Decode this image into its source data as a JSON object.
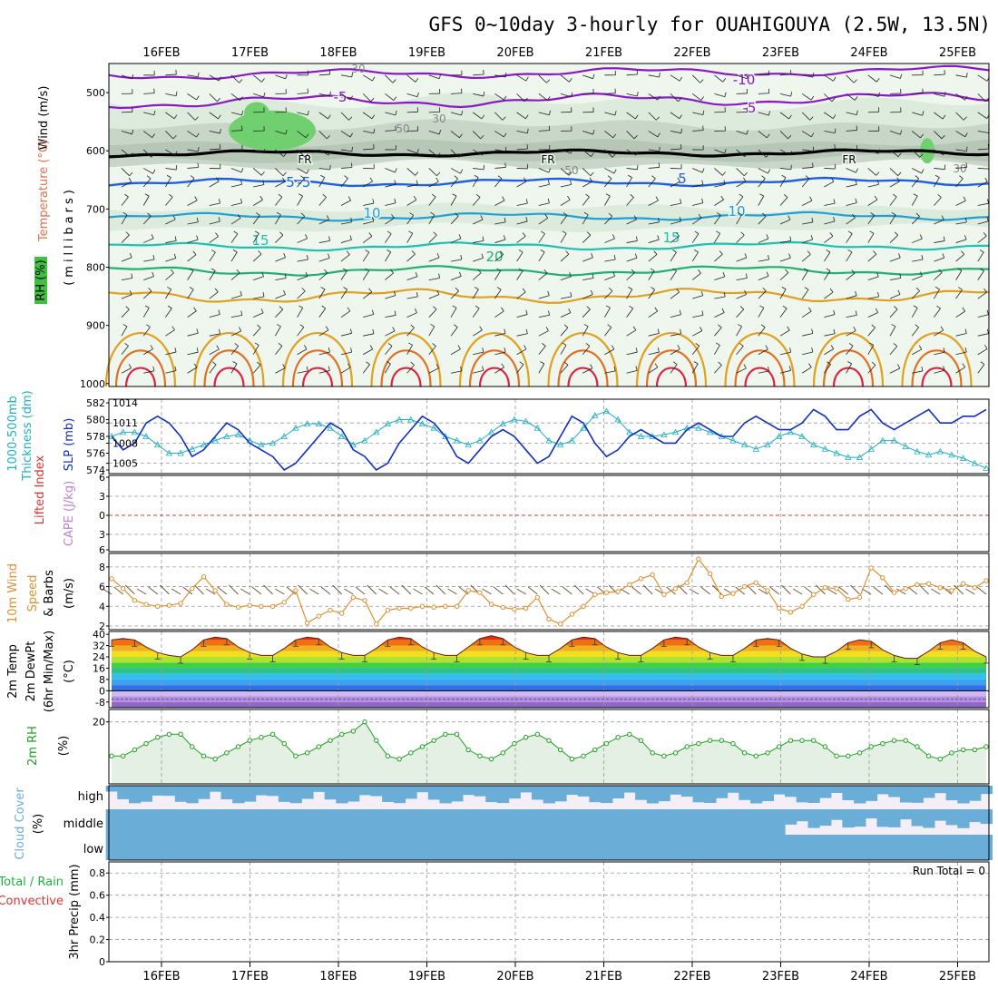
{
  "title": "GFS 0~10day 3-hourly for OUAHIGOUYA (2.5W, 13.5N)",
  "colors": {
    "temp_neg": "#8a18c8",
    "temp_freeze": "#000000",
    "temp_cold": "#2060e0",
    "temp_10": "#20a0d8",
    "temp_15": "#20c0b0",
    "temp_20": "#20b070",
    "temp_warm": "#e0a020",
    "temp_hot": "#e07020",
    "temp_hottest": "#e02040",
    "slp": "#1030c0",
    "thickness": "#20b0c0",
    "lifted_index": "#e03030",
    "cape": "#c080d0",
    "wind": "#e09030",
    "rh": "#20a020",
    "cloud": "#6aaed8",
    "precip_total": "#20b040",
    "precip_conv": "#e03030"
  },
  "axes": {
    "date_labels": [
      "16FEB",
      "17FEB",
      "18FEB",
      "19FEB",
      "20FEB",
      "21FEB",
      "22FEB",
      "23FEB",
      "24FEB",
      "25FEB"
    ]
  },
  "panels": {
    "upper": {
      "ylabel_wind": "Wind (m/s)",
      "ylabel_temp": "Temperature (°C)",
      "ylabel_rh": "RH (%)",
      "ylabel_units": "(millibars)",
      "freeze_label": "FR",
      "yticks": [
        "500",
        "600",
        "700",
        "800",
        "900",
        "1000"
      ],
      "contour_labels": [
        "-10",
        "-5",
        "-5",
        "-5",
        "5",
        "10",
        "10",
        "15",
        "15",
        "20",
        "5"
      ],
      "rh_labels": [
        "30",
        "30",
        "50",
        "50",
        "30"
      ]
    },
    "slp": {
      "ylabel_thick": "Thickness (dm)",
      "ylabel_thick_top": "1000-500mb",
      "ylabel_slp": "SLP (mb)",
      "yticks_left": [
        "582",
        "580",
        "578",
        "576",
        "574"
      ],
      "yticks_right": [
        "1014",
        "1011",
        "1008",
        "1005"
      ]
    },
    "li": {
      "ylabel_li": "Lifted Index",
      "ylabel_cape": "CAPE (J/kg)",
      "yticks": [
        "6",
        "3",
        "0",
        "3",
        "6"
      ]
    },
    "wind": {
      "ylabel_a": "10m Wind",
      "ylabel_b": "Speed",
      "ylabel_c": "& Barbs",
      "ylabel_units": "(m/s)",
      "yticks": [
        "8",
        "6",
        "4",
        "2"
      ]
    },
    "temp": {
      "ylabel_a": "2m Temp",
      "ylabel_b": "2m DewPt",
      "ylabel_c": "(6hr Min/Max)",
      "ylabel_units": "(°C)",
      "yticks": [
        "40",
        "32",
        "24",
        "16",
        "8",
        "0",
        "-8"
      ]
    },
    "rh": {
      "ylabel": "2m RH",
      "ylabel_units": "(%)",
      "yticks": [
        "20"
      ]
    },
    "cloud": {
      "ylabel": "Cloud Cover",
      "ylabel_units": "(%)",
      "levels": [
        "high",
        "middle",
        "low"
      ]
    },
    "precip": {
      "ylabel_a": "Total / Rain",
      "ylabel_b": "Convective",
      "ylabel_c": "3hr Precip (mm)",
      "run_total": "Run Total = 0",
      "yticks": [
        "0.8",
        "0.6",
        "0.4",
        "0.2",
        "0"
      ]
    }
  },
  "chart_data": [
    {
      "type": "line",
      "title": "SLP (mb) and 1000-500mb Thickness (dm)",
      "x_start": "15FEB 12Z",
      "x_step_hours": 3,
      "series": [
        {
          "name": "SLP (mb)",
          "values": [
            1009,
            1007,
            1008,
            1011,
            1012,
            1011,
            1009,
            1006,
            1007,
            1009,
            1011,
            1010,
            1008,
            1007,
            1006,
            1004,
            1005,
            1007,
            1009,
            1011,
            1010,
            1007,
            1006,
            1004,
            1005,
            1008,
            1010,
            1012,
            1011,
            1009,
            1006,
            1005,
            1007,
            1009,
            1010,
            1009,
            1007,
            1005,
            1006,
            1009,
            1012,
            1011,
            1008,
            1006,
            1007,
            1009,
            1010,
            1009,
            1008,
            1008,
            1010,
            1011,
            1010,
            1009,
            1009,
            1011,
            1012,
            1011,
            1010,
            1010,
            1011,
            1013,
            1012,
            1010,
            1010,
            1012,
            1013,
            1011,
            1010,
            1011,
            1012,
            1013,
            1011,
            1011,
            1012,
            1012,
            1013
          ]
        },
        {
          "name": "Thickness (dm)",
          "values": [
            578,
            578.5,
            578.5,
            578,
            577,
            576,
            576,
            576.5,
            577,
            577.5,
            578,
            578.2,
            577.5,
            577,
            577.2,
            578,
            579,
            579.5,
            579.5,
            579,
            578,
            577,
            577.5,
            578.5,
            579.5,
            580,
            580,
            579.5,
            579,
            578,
            577.5,
            577,
            577.5,
            578.5,
            579.5,
            580,
            579.8,
            579,
            577.5,
            577,
            577.5,
            579,
            580.5,
            581,
            580,
            578.5,
            578,
            578,
            578.2,
            578.5,
            579,
            579,
            578.5,
            578,
            577.5,
            577,
            576.5,
            577,
            578,
            578.5,
            578,
            577,
            576.5,
            576,
            575.5,
            575.5,
            576.5,
            577.5,
            577.5,
            576.8,
            576.2,
            575.8,
            576.2,
            575.8,
            575.4,
            574.8,
            574.2
          ]
        }
      ],
      "ylim_thickness": [
        574,
        582
      ],
      "ylim_slp": [
        1004,
        1014
      ]
    },
    {
      "type": "line",
      "title": "10m Wind Speed (m/s)",
      "x_start": "15FEB 12Z",
      "x_step_hours": 3,
      "series": [
        {
          "name": "10m Wind Speed",
          "values": [
            6.8,
            5.8,
            4.6,
            4.2,
            4.0,
            4.1,
            4.3,
            5.8,
            7.0,
            5.6,
            4.2,
            3.9,
            4.1,
            4.0,
            4.0,
            4.4,
            5.6,
            2.3,
            3.0,
            3.6,
            3.3,
            4.9,
            4.6,
            2.2,
            3.6,
            3.8,
            3.8,
            4.0,
            3.9,
            4.0,
            4.0,
            5.6,
            5.4,
            4.2,
            3.9,
            3.7,
            3.8,
            4.9,
            2.7,
            2.2,
            3.2,
            4.0,
            5.2,
            5.4,
            5.5,
            6.2,
            6.8,
            7.2,
            5.2,
            5.8,
            6.4,
            8.8,
            7.3,
            5.0,
            5.3,
            6.0,
            6.4,
            5.6,
            3.8,
            3.4,
            4.0,
            5.2,
            5.9,
            5.8,
            4.7,
            4.9,
            7.9,
            6.9,
            5.4,
            5.8,
            6.2,
            6.3,
            5.9,
            5.6,
            6.3,
            5.9,
            6.6
          ]
        }
      ],
      "ylim": [
        2,
        9
      ]
    },
    {
      "type": "area",
      "title": "2m Temp (°C)",
      "x_start": "15FEB 12Z",
      "x_step_hours": 3,
      "series": [
        {
          "name": "2m Temp (6hr Min/Max)",
          "values": [
            36,
            37,
            36,
            31,
            27,
            25,
            24,
            29,
            36,
            38,
            37,
            31,
            27,
            25,
            25,
            30,
            36,
            38,
            37,
            31,
            27,
            25,
            25,
            30,
            36,
            38,
            37,
            31,
            27,
            25,
            25,
            31,
            37,
            39,
            37,
            31,
            27,
            25,
            25,
            30,
            36,
            38,
            37,
            31,
            27,
            25,
            25,
            30,
            36,
            38,
            37,
            31,
            27,
            25,
            25,
            30,
            36,
            37,
            36,
            30,
            26,
            24,
            24,
            28,
            34,
            36,
            35,
            29,
            25,
            23,
            23,
            28,
            34,
            36,
            34,
            28,
            24
          ]
        },
        {
          "name": "2m DewPt",
          "values": [
            -6,
            -6,
            -6,
            -6,
            -6,
            -6,
            -6,
            -6,
            -6,
            -6,
            -6,
            -6,
            -6,
            -6,
            -6,
            -6,
            -6,
            -6,
            -6,
            -6,
            -6,
            -6,
            -6,
            -6,
            -6,
            -6,
            -6,
            -6,
            -6,
            -6,
            -6,
            -6,
            -6,
            -6,
            -6,
            -6,
            -6,
            -6,
            -6,
            -6,
            -6,
            -6,
            -6,
            -6,
            -6,
            -6,
            -6,
            -6,
            -6,
            -6,
            -6,
            -6,
            -6,
            -6,
            -6,
            -6,
            -6,
            -6,
            -6,
            -6,
            -6,
            -6,
            -6,
            -6,
            -6,
            -6,
            -6,
            -6,
            -6,
            -6,
            -6,
            -6,
            -6,
            -6,
            -6,
            -6,
            -6
          ]
        }
      ],
      "ylim": [
        -12,
        42
      ]
    },
    {
      "type": "line",
      "title": "2m RH (%)",
      "x_start": "15FEB 12Z",
      "x_step_hours": 3,
      "series": [
        {
          "name": "2m RH",
          "values": [
            9,
            9,
            11,
            13,
            15,
            16,
            16,
            12,
            9,
            8,
            10,
            12,
            14,
            15,
            16,
            13,
            9,
            10,
            12,
            14,
            16,
            17,
            20,
            14,
            9,
            8,
            10,
            12,
            14,
            16,
            16,
            11,
            9,
            8,
            10,
            13,
            15,
            16,
            14,
            11,
            8,
            9,
            11,
            13,
            15,
            16,
            14,
            10,
            9,
            10,
            12,
            13,
            14,
            14,
            13,
            10,
            9,
            10,
            12,
            14,
            14,
            14,
            12,
            9,
            9,
            10,
            12,
            13,
            14,
            14,
            12,
            9,
            8,
            10,
            11,
            11,
            12
          ]
        }
      ],
      "ylim": [
        0,
        24
      ]
    },
    {
      "type": "bar",
      "title": "Cloud Cover (%)",
      "categories": [
        "high",
        "middle",
        "low"
      ],
      "series": [
        {
          "name": "mean cover fraction",
          "values": [
            0.55,
            0.9,
            1.0
          ]
        }
      ]
    },
    {
      "type": "bar",
      "title": "3hr Precip (mm)",
      "series": [
        {
          "name": "Total / Rain",
          "values": []
        },
        {
          "name": "Convective",
          "values": []
        }
      ],
      "ylim": [
        0,
        0.9
      ]
    }
  ]
}
